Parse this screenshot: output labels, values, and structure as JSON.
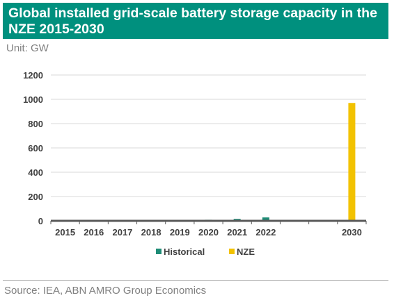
{
  "header": {
    "title": "Global installed grid-scale battery storage capacity in the NZE 2015-2030",
    "unit": "Unit: GW"
  },
  "footer": {
    "source": "Source: IEA, ABN AMRO Group Economics"
  },
  "colors": {
    "title_background": "#00907e",
    "historical": "#1e8c76",
    "nze": "#f2c200",
    "axis": "#595959",
    "grid": "#d9d9d9"
  },
  "chart_data": {
    "type": "bar",
    "title": "Global installed grid-scale battery storage capacity in the NZE 2015-2030",
    "ylabel": "",
    "xlabel": "",
    "ylim": [
      0,
      1200
    ],
    "yticks": [
      0,
      200,
      400,
      600,
      800,
      1000,
      1200
    ],
    "grid": true,
    "legend_position": "bottom",
    "categories": [
      "2015",
      "2016",
      "2017",
      "2018",
      "2019",
      "2020",
      "2021",
      "2022",
      "",
      "",
      "2030"
    ],
    "series": [
      {
        "name": "Historical",
        "color": "#1e8c76",
        "values": [
          1,
          2,
          3,
          4,
          6,
          9,
          16,
          28,
          null,
          null,
          null
        ]
      },
      {
        "name": "NZE",
        "color": "#f2c200",
        "values": [
          null,
          null,
          null,
          null,
          null,
          null,
          null,
          null,
          null,
          null,
          970
        ]
      }
    ]
  }
}
